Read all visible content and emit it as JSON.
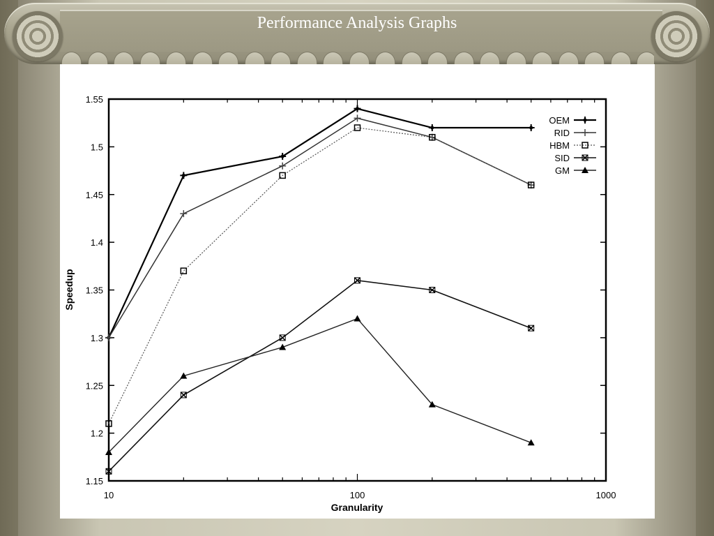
{
  "slide": {
    "title": "Performance Analysis Graphs"
  },
  "chart_data": {
    "type": "line",
    "xlabel": "Granularity",
    "ylabel": "Speedup",
    "xscale": "log",
    "xlim": [
      10,
      1000
    ],
    "ylim": [
      1.15,
      1.55
    ],
    "x_ticks": [
      "10",
      "100",
      "1000"
    ],
    "y_ticks": [
      "1.15",
      "1.2",
      "1.25",
      "1.3",
      "1.35",
      "1.4",
      "1.45",
      "1.5",
      "1.55"
    ],
    "legend_position": "top-right",
    "grid": false,
    "x": [
      10,
      20,
      50,
      100,
      200,
      500
    ],
    "series": [
      {
        "name": "OEM",
        "marker": "plus",
        "values": [
          1.3,
          1.47,
          1.49,
          1.54,
          1.52,
          1.52
        ]
      },
      {
        "name": "RID",
        "marker": "cross",
        "values": [
          1.3,
          1.43,
          1.48,
          1.53,
          1.51,
          1.46
        ]
      },
      {
        "name": "HBM",
        "marker": "square",
        "values": [
          1.21,
          1.37,
          1.47,
          1.52,
          1.51,
          1.46
        ]
      },
      {
        "name": "SID",
        "marker": "x",
        "values": [
          1.16,
          1.24,
          1.3,
          1.36,
          1.35,
          1.31
        ]
      },
      {
        "name": "GM",
        "marker": "triangle",
        "values": [
          1.18,
          1.26,
          1.29,
          1.32,
          1.23,
          1.19
        ]
      }
    ]
  }
}
